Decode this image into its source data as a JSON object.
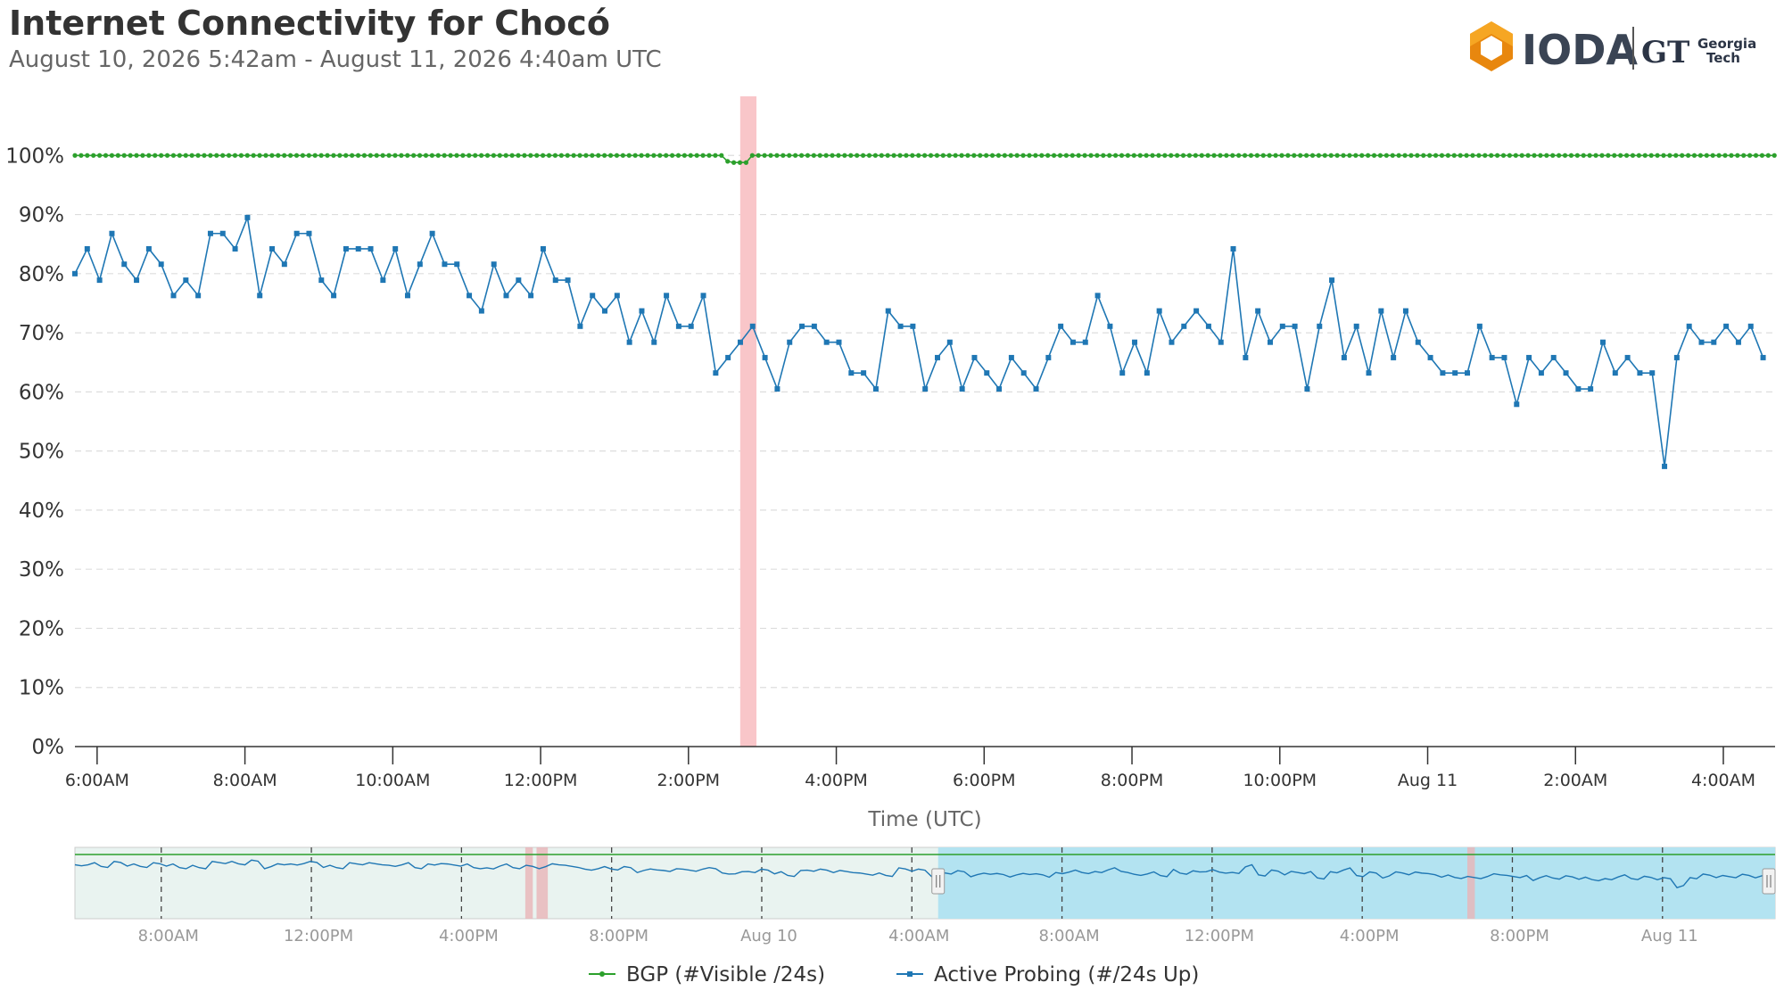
{
  "header": {
    "title": "Internet Connectivity for Chocó",
    "subtitle": "August 10, 2026 5:42am - August 11, 2026 4:40am UTC"
  },
  "logo": {
    "brand": "IODA",
    "partner_line1": "Georgia",
    "partner_line2": "Tech",
    "partner_mark": "GT"
  },
  "colors": {
    "bgp": "#2ca02c",
    "active": "#1f77b4",
    "outage": "#f9c6c9",
    "navigator_fill": "#e9f3f0",
    "navigator_selection": "#b3e3f1"
  },
  "chart_data": {
    "type": "line",
    "title": "Internet Connectivity for Chocó",
    "xlabel": "Time (UTC)",
    "ylabel": "",
    "y_tick_labels": [
      "0%",
      "10%",
      "20%",
      "30%",
      "40%",
      "50%",
      "60%",
      "70%",
      "80%",
      "90%",
      "100%"
    ],
    "ylim": [
      0,
      110
    ],
    "x_range_hours": [
      -0.3,
      22.7
    ],
    "x_tick_labels": [
      "6:00AM",
      "8:00AM",
      "10:00AM",
      "12:00PM",
      "2:00PM",
      "4:00PM",
      "6:00PM",
      "8:00PM",
      "10:00PM",
      "Aug 11",
      "2:00AM",
      "4:00AM"
    ],
    "x_tick_hours": [
      0,
      2,
      4,
      6,
      8,
      10,
      12,
      14,
      16,
      18,
      20,
      22
    ],
    "grid": "horizontal-dashed",
    "legend_position": "bottom-center",
    "outage_band_hours": [
      8.7,
      8.92
    ],
    "series": [
      {
        "name": "BGP (#Visible /24s)",
        "color": "#2ca02c",
        "x_start_hour": -0.3,
        "x_step_hour": 0.0833,
        "values": [
          100,
          100,
          100,
          100,
          100,
          100,
          100,
          100,
          100,
          100,
          100,
          100,
          100,
          100,
          100,
          100,
          100,
          100,
          100,
          100,
          100,
          100,
          100,
          100,
          100,
          100,
          100,
          100,
          100,
          100,
          100,
          100,
          100,
          100,
          100,
          100,
          100,
          100,
          100,
          100,
          100,
          100,
          100,
          100,
          100,
          100,
          100,
          100,
          100,
          100,
          100,
          100,
          100,
          100,
          100,
          100,
          100,
          100,
          100,
          100,
          100,
          100,
          100,
          100,
          100,
          100,
          100,
          100,
          100,
          100,
          100,
          100,
          100,
          100,
          100,
          100,
          100,
          100,
          100,
          100,
          100,
          100,
          100,
          100,
          100,
          100,
          100,
          100,
          100,
          100,
          100,
          100,
          100,
          100,
          100,
          100,
          100,
          100,
          100,
          100,
          100,
          100,
          100,
          100,
          100,
          100,
          99.0,
          98.8,
          98.8,
          98.8,
          100,
          100,
          100,
          100,
          100,
          100,
          100,
          100,
          100,
          100,
          100,
          100,
          100,
          100,
          100,
          100,
          100,
          100,
          100,
          100,
          100,
          100,
          100,
          100,
          100,
          100,
          100,
          100,
          100,
          100,
          100,
          100,
          100,
          100,
          100,
          100,
          100,
          100,
          100,
          100,
          100,
          100,
          100,
          100,
          100,
          100,
          100,
          100,
          100,
          100,
          100,
          100,
          100,
          100,
          100,
          100,
          100,
          100,
          100,
          100,
          100,
          100,
          100,
          100,
          100,
          100,
          100,
          100,
          100,
          100,
          100,
          100,
          100,
          100,
          100,
          100,
          100,
          100,
          100,
          100,
          100,
          100,
          100,
          100,
          100,
          100,
          100,
          100,
          100,
          100,
          100,
          100,
          100,
          100,
          100,
          100,
          100,
          100,
          100,
          100,
          100,
          100,
          100,
          100,
          100,
          100,
          100,
          100,
          100,
          100,
          100,
          100,
          100,
          100,
          100,
          100,
          100,
          100,
          100,
          100,
          100,
          100,
          100,
          100,
          100,
          100,
          100,
          100,
          100,
          100,
          100,
          100,
          100,
          100,
          100,
          100,
          100,
          100,
          100,
          100,
          100,
          100,
          100,
          100,
          100,
          100,
          100,
          100,
          100,
          100,
          100,
          100,
          100,
          100,
          100,
          100,
          100,
          100,
          100,
          100,
          100,
          100,
          100,
          100,
          100,
          100,
          100,
          100,
          100,
          100,
          100,
          100,
          100,
          100,
          100,
          100,
          100,
          100,
          100,
          100,
          100,
          100,
          100,
          100,
          100,
          100,
          100,
          100
        ]
      },
      {
        "name": "Active Probing (#/24s Up)",
        "color": "#1f77b4",
        "x_start_hour": -0.3,
        "x_step_hour": 0.1667,
        "values": [
          80,
          84.2,
          78.9,
          86.8,
          81.6,
          78.9,
          84.2,
          81.6,
          76.3,
          78.9,
          76.3,
          86.8,
          86.8,
          84.2,
          89.5,
          76.3,
          84.2,
          81.6,
          86.8,
          86.8,
          78.9,
          76.3,
          84.2,
          84.2,
          84.2,
          78.9,
          84.2,
          76.3,
          81.6,
          86.8,
          81.6,
          81.6,
          76.3,
          73.7,
          81.6,
          76.3,
          78.9,
          76.3,
          84.2,
          78.9,
          78.9,
          71.1,
          76.3,
          73.7,
          76.3,
          68.4,
          73.7,
          68.4,
          76.3,
          71.1,
          71.1,
          76.3,
          63.2,
          65.8,
          68.4,
          71.1,
          65.8,
          60.5,
          68.4,
          71.1,
          71.1,
          68.4,
          68.4,
          63.2,
          63.2,
          60.5,
          73.7,
          71.1,
          71.1,
          60.5,
          65.8,
          68.4,
          60.5,
          65.8,
          63.2,
          60.5,
          65.8,
          63.2,
          60.5,
          65.8,
          71.1,
          68.4,
          68.4,
          76.3,
          71.1,
          63.2,
          68.4,
          63.2,
          73.7,
          68.4,
          71.1,
          73.7,
          71.1,
          68.4,
          84.2,
          65.8,
          73.7,
          68.4,
          71.1,
          71.1,
          60.5,
          71.1,
          78.9,
          65.8,
          71.1,
          63.2,
          73.7,
          65.8,
          73.7,
          68.4,
          65.8,
          63.2,
          63.2,
          63.2,
          71.1,
          65.8,
          65.8,
          57.9,
          65.8,
          63.2,
          65.8,
          63.2,
          60.5,
          60.5,
          68.4,
          63.2,
          65.8,
          63.2,
          63.2,
          47.4,
          65.8,
          71.1,
          68.4,
          68.4,
          71.1,
          68.4,
          71.1,
          65.8
        ]
      }
    ],
    "navigator": {
      "x_tick_labels": [
        "8:00AM",
        "12:00PM",
        "4:00PM",
        "8:00PM",
        "Aug 10",
        "4:00AM",
        "8:00AM",
        "12:00PM",
        "4:00PM",
        "8:00PM",
        "Aug 11",
        "4:00AM"
      ],
      "range_hours": [
        -22.3,
        23
      ],
      "selection_hours": [
        0.7,
        23
      ],
      "outage_hours": [
        [
          -10.3,
          -10.1
        ],
        [
          -10.0,
          -9.7
        ],
        [
          14.8,
          15.0
        ]
      ]
    }
  },
  "legend": {
    "bgp_label": "BGP (#Visible /24s)",
    "active_label": "Active Probing (#/24s Up)"
  }
}
